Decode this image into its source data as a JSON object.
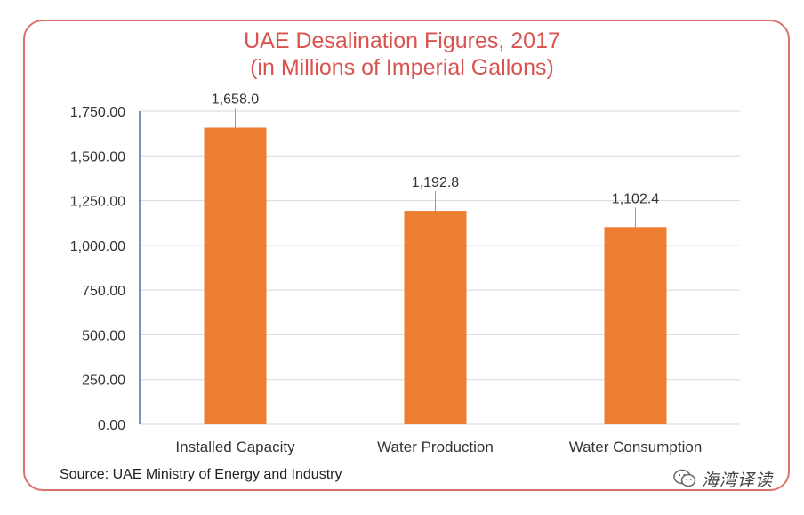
{
  "chart_data": {
    "type": "bar",
    "title": "UAE Desalination Figures, 2017",
    "subtitle": "(in Millions of Imperial Gallons)",
    "categories": [
      "Installed Capacity",
      "Water Production",
      "Water Consumption"
    ],
    "values": [
      1658.0,
      1192.8,
      1102.4
    ],
    "value_labels": [
      "1,658.0",
      "1,192.8",
      "1,102.4"
    ],
    "yticks": [
      "0.00",
      "250.00",
      "500.00",
      "750.00",
      "1,000.00",
      "1,250.00",
      "1,500.00",
      "1,750.00"
    ],
    "ylim": [
      0,
      1750
    ],
    "grid": true,
    "legend": "none",
    "bar_color": "#ed7d31",
    "title_color": "#d9534f",
    "border_color": "#d9726a"
  },
  "source": "Source: UAE Ministry of Energy and Industry",
  "watermark": {
    "text": "海湾译读",
    "icon": "wechat-icon"
  }
}
